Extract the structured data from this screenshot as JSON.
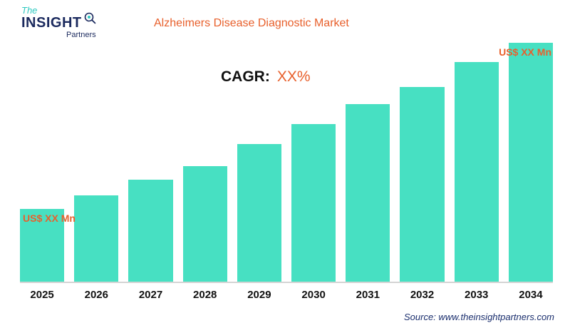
{
  "logo": {
    "the": "The",
    "insight": "INSIGHT",
    "partners": "Partners"
  },
  "header": {
    "title": "Alzheimers Disease Diagnostic Market"
  },
  "cagr": {
    "label": "CAGR:",
    "value": "XX%"
  },
  "value_labels": {
    "first": "US$ XX Mn",
    "last": "US$ XX Mn"
  },
  "source": {
    "text": "Source: www.theinsightpartners.com"
  },
  "colors": {
    "bar": "#47e0c2",
    "accent_orange": "#e8602c",
    "navy": "#1b2a5e",
    "teal": "#2fc9c0",
    "axis_line": "#d4d4d4"
  },
  "chart_data": {
    "type": "bar",
    "title": "Alzheimers Disease Diagnostic Market",
    "categories": [
      "2025",
      "2026",
      "2027",
      "2028",
      "2029",
      "2030",
      "2031",
      "2032",
      "2033",
      "2034"
    ],
    "values": [
      100,
      118,
      140,
      158,
      188,
      216,
      243,
      266,
      301,
      327
    ],
    "values_note": "actual values masked in chart as 'US$ XX Mn'; numbers are relative bar heights estimated from pixels",
    "units": "US$ Mn",
    "xlabel": "",
    "ylabel": "",
    "annotations": [
      "CAGR: XX%",
      "US$ XX Mn above 2025 bar",
      "US$ XX Mn above 2034 bar"
    ],
    "legend": false,
    "grid": false
  }
}
